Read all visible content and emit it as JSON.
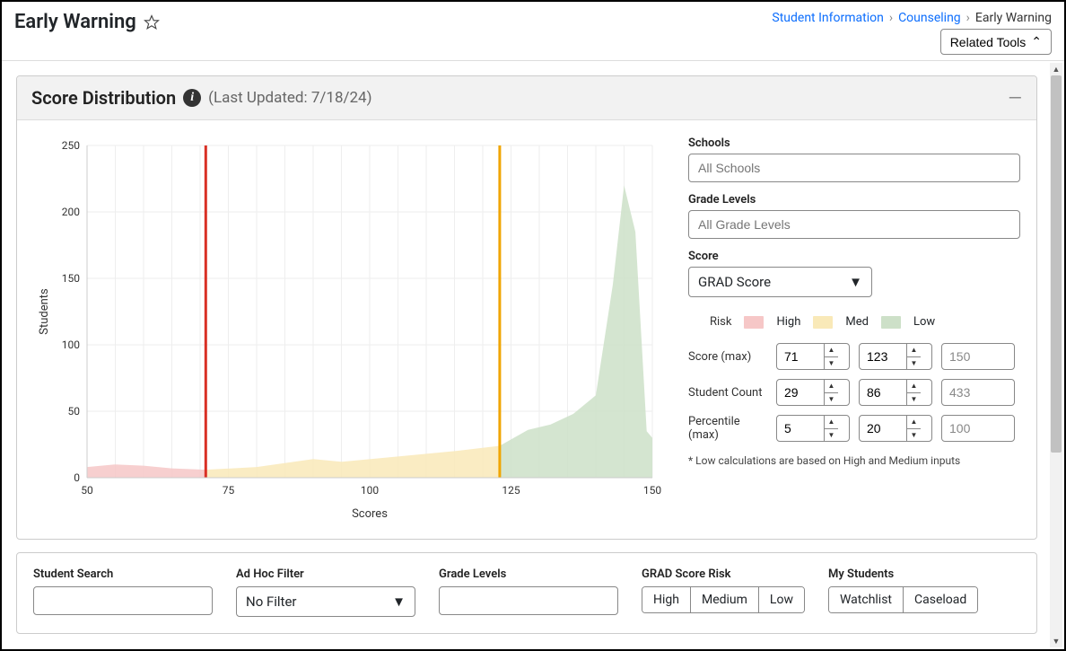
{
  "header": {
    "title": "Early Warning",
    "breadcrumb": {
      "item1": "Student Information",
      "item2": "Counseling",
      "current": "Early Warning"
    },
    "related_tools": "Related Tools"
  },
  "panel": {
    "title": "Score Distribution",
    "last_updated": "(Last Updated: 7/18/24)"
  },
  "chart": {
    "type": "area",
    "x_label": "Scores",
    "y_label": "Students",
    "xlim": [
      50,
      150
    ],
    "ylim": [
      0,
      250
    ],
    "x_ticks": [
      50,
      75,
      100,
      125,
      150
    ],
    "y_ticks": [
      0,
      50,
      100,
      150,
      200,
      250
    ],
    "grid_color": "#eeeeee",
    "axis_color": "#888888",
    "tick_fontsize": 12,
    "label_fontsize": 13,
    "series": [
      {
        "name": "high",
        "fill": "#f6c7c7",
        "points": [
          [
            50,
            8
          ],
          [
            55,
            10
          ],
          [
            60,
            9
          ],
          [
            65,
            7
          ],
          [
            71,
            6
          ]
        ]
      },
      {
        "name": "med",
        "fill": "#f9e9b8",
        "points": [
          [
            71,
            6
          ],
          [
            80,
            8
          ],
          [
            90,
            14
          ],
          [
            95,
            12
          ],
          [
            105,
            16
          ],
          [
            115,
            20
          ],
          [
            123,
            24
          ]
        ]
      },
      {
        "name": "low",
        "fill": "#cde0c8",
        "points": [
          [
            123,
            24
          ],
          [
            128,
            36
          ],
          [
            132,
            40
          ],
          [
            136,
            48
          ],
          [
            140,
            62
          ],
          [
            143,
            145
          ],
          [
            145,
            220
          ],
          [
            147,
            185
          ],
          [
            149,
            35
          ],
          [
            150,
            30
          ]
        ]
      }
    ],
    "dividers": [
      {
        "x": 71,
        "color": "#d93025",
        "width": 3
      },
      {
        "x": 123,
        "color": "#f0a500",
        "width": 3
      }
    ]
  },
  "controls": {
    "schools": {
      "label": "Schools",
      "placeholder": "All Schools"
    },
    "grade_levels": {
      "label": "Grade Levels",
      "placeholder": "All Grade Levels"
    },
    "score": {
      "label": "Score",
      "selected": "GRAD Score"
    },
    "risk_legend": {
      "label": "Risk",
      "high": {
        "label": "High",
        "color": "#f6c7c7"
      },
      "med": {
        "label": "Med",
        "color": "#f9e9b8"
      },
      "low": {
        "label": "Low",
        "color": "#cde0c8"
      }
    },
    "rows": {
      "score_max": {
        "label": "Score (max)",
        "high": "71",
        "med": "123",
        "low": "150"
      },
      "student_count": {
        "label": "Student Count",
        "high": "29",
        "med": "86",
        "low": "433"
      },
      "percentile_max": {
        "label": "Percentile (max)",
        "high": "5",
        "med": "20",
        "low": "100"
      }
    },
    "low_note": "* Low calculations are based on High and Medium inputs"
  },
  "filters": {
    "student_search": {
      "label": "Student Search"
    },
    "adhoc": {
      "label": "Ad Hoc Filter",
      "selected": "No Filter"
    },
    "grade_levels": {
      "label": "Grade Levels"
    },
    "grad_risk": {
      "label": "GRAD Score Risk",
      "options": [
        "High",
        "Medium",
        "Low"
      ]
    },
    "my_students": {
      "label": "My Students",
      "options": [
        "Watchlist",
        "Caseload"
      ]
    }
  }
}
